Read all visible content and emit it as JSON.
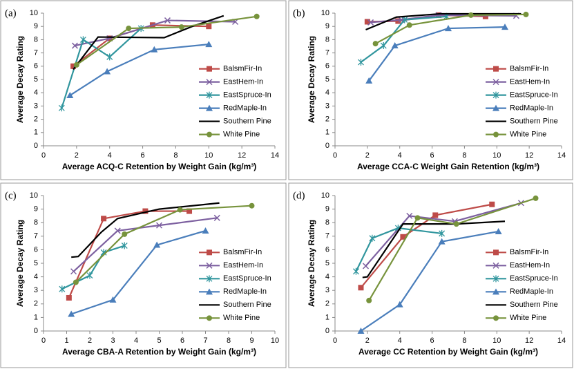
{
  "chart_data": [
    {
      "type": "line",
      "label": "(a)",
      "xlabel": "Average ACQ-C Retention by Weight Gain (kg/m³)",
      "ylabel": "Average Decay Rating",
      "xlim": [
        0,
        14
      ],
      "xticks": [
        0,
        2,
        4,
        6,
        8,
        10,
        12,
        14
      ],
      "ylim": [
        0,
        10
      ],
      "yticks": [
        0,
        1,
        2,
        3,
        4,
        5,
        6,
        7,
        8,
        9,
        10
      ],
      "legend": "right",
      "series": [
        {
          "name": "BalsmFir-In",
          "color": "#be4b48",
          "marker": "square",
          "x": [
            1.8,
            4.0,
            6.6,
            10.0
          ],
          "values": [
            6.0,
            8.1,
            9.1,
            9.0
          ]
        },
        {
          "name": "EastHem-In",
          "color": "#7d60a0",
          "marker": "x",
          "x": [
            1.9,
            4.0,
            7.5,
            11.6
          ],
          "values": [
            7.55,
            8.1,
            9.45,
            9.35
          ]
        },
        {
          "name": "EastSpruce-In",
          "color": "#31969e",
          "marker": "star",
          "x": [
            1.1,
            2.4,
            4.0,
            5.9
          ],
          "values": [
            2.85,
            8.0,
            6.7,
            8.85
          ]
        },
        {
          "name": "RedMaple-In",
          "color": "#4a7ebb",
          "marker": "triangle",
          "x": [
            1.6,
            3.85,
            6.7,
            10.0
          ],
          "values": [
            3.8,
            5.6,
            7.25,
            7.65
          ]
        },
        {
          "name": "Southern Pine",
          "color": "#000000",
          "marker": "none",
          "x": [
            1.8,
            3.3,
            7.3,
            9.0,
            10.9
          ],
          "values": [
            5.75,
            8.2,
            8.15,
            9.0,
            9.8
          ]
        },
        {
          "name": "White Pine",
          "color": "#77933c",
          "marker": "circle",
          "x": [
            2.0,
            5.15,
            8.35,
            12.9
          ],
          "values": [
            6.1,
            8.85,
            8.95,
            9.75
          ]
        }
      ]
    },
    {
      "type": "line",
      "label": "(b)",
      "xlabel": "Average CCA-C Weight Gain Retention (kg/m³)",
      "ylabel": "Average Decay Rating",
      "xlim": [
        0,
        14
      ],
      "xticks": [
        0,
        2,
        4,
        6,
        8,
        10,
        12,
        14
      ],
      "ylim": [
        0,
        10
      ],
      "yticks": [
        0,
        1,
        2,
        3,
        4,
        5,
        6,
        7,
        8,
        9,
        10
      ],
      "legend": "right",
      "series": [
        {
          "name": "BalsmFir-In",
          "color": "#be4b48",
          "marker": "square",
          "x": [
            2.0,
            3.9,
            6.4,
            9.3
          ],
          "values": [
            9.35,
            9.4,
            9.85,
            9.75
          ]
        },
        {
          "name": "EastHem-In",
          "color": "#7d60a0",
          "marker": "x",
          "x": [
            2.2,
            4.1,
            6.4,
            11.2
          ],
          "values": [
            9.3,
            9.5,
            9.85,
            9.8
          ]
        },
        {
          "name": "EastSpruce-In",
          "color": "#31969e",
          "marker": "star",
          "x": [
            1.6,
            3.0,
            4.3,
            6.9
          ],
          "values": [
            6.3,
            7.55,
            9.5,
            9.75
          ]
        },
        {
          "name": "RedMaple-In",
          "color": "#4a7ebb",
          "marker": "triangle",
          "x": [
            2.1,
            3.7,
            7.0,
            10.5
          ],
          "values": [
            4.9,
            7.55,
            8.85,
            8.95
          ]
        },
        {
          "name": "Southern Pine",
          "color": "#000000",
          "marker": "none",
          "x": [
            1.9,
            3.8,
            6.5,
            11.5
          ],
          "values": [
            8.75,
            9.7,
            9.95,
            9.95
          ]
        },
        {
          "name": "White Pine",
          "color": "#77933c",
          "marker": "circle",
          "x": [
            2.5,
            4.6,
            8.4,
            11.8
          ],
          "values": [
            7.7,
            9.1,
            9.85,
            9.9
          ]
        }
      ]
    },
    {
      "type": "line",
      "label": "(c)",
      "xlabel": "Average CBA-A Retention by Weight Gain (kg/m³)",
      "ylabel": "Average Decay Rating",
      "xlim": [
        0,
        10
      ],
      "xticks": [
        0,
        1,
        2,
        3,
        4,
        5,
        6,
        7,
        8,
        9,
        10
      ],
      "ylim": [
        0,
        10
      ],
      "yticks": [
        0,
        1,
        2,
        3,
        4,
        5,
        6,
        7,
        8,
        9,
        10
      ],
      "legend": "right",
      "series": [
        {
          "name": "BalsmFir-In",
          "color": "#be4b48",
          "marker": "square",
          "x": [
            1.1,
            2.6,
            4.4,
            6.3
          ],
          "values": [
            2.45,
            8.3,
            8.85,
            8.85
          ]
        },
        {
          "name": "EastHem-In",
          "color": "#7d60a0",
          "marker": "x",
          "x": [
            1.3,
            3.2,
            5.0,
            7.5
          ],
          "values": [
            4.4,
            7.4,
            7.8,
            8.35
          ]
        },
        {
          "name": "EastSpruce-In",
          "color": "#31969e",
          "marker": "star",
          "x": [
            0.8,
            2.0,
            2.6,
            3.5
          ],
          "values": [
            3.1,
            4.1,
            5.8,
            6.3
          ]
        },
        {
          "name": "RedMaple-In",
          "color": "#4a7ebb",
          "marker": "triangle",
          "x": [
            1.2,
            3.0,
            4.9,
            7.0
          ],
          "values": [
            1.25,
            2.3,
            6.35,
            7.4
          ]
        },
        {
          "name": "Southern Pine",
          "color": "#000000",
          "marker": "none",
          "x": [
            1.2,
            1.5,
            2.5,
            3.2,
            5.0,
            7.6
          ],
          "values": [
            5.45,
            5.5,
            7.3,
            8.3,
            9.0,
            9.45
          ]
        },
        {
          "name": "White Pine",
          "color": "#77933c",
          "marker": "circle",
          "x": [
            1.4,
            3.5,
            5.9,
            9.0
          ],
          "values": [
            3.6,
            7.15,
            8.95,
            9.25
          ]
        }
      ]
    },
    {
      "type": "line",
      "label": "(d)",
      "xlabel": "Average CC Retention by Weight Gain (kg/m³)",
      "ylabel": "Average Decay Rating",
      "xlim": [
        0,
        14
      ],
      "xticks": [
        0,
        2,
        4,
        6,
        8,
        10,
        12,
        14
      ],
      "ylim": [
        0,
        10
      ],
      "yticks": [
        0,
        1,
        2,
        3,
        4,
        5,
        6,
        7,
        8,
        9,
        10
      ],
      "legend": "right",
      "series": [
        {
          "name": "BalsmFir-In",
          "color": "#be4b48",
          "marker": "square",
          "x": [
            1.6,
            4.2,
            6.2,
            9.7
          ],
          "values": [
            3.2,
            6.95,
            8.55,
            9.35
          ]
        },
        {
          "name": "EastHem-In",
          "color": "#7d60a0",
          "marker": "x",
          "x": [
            1.9,
            4.6,
            7.4,
            11.5
          ],
          "values": [
            4.8,
            8.5,
            8.1,
            9.45
          ]
        },
        {
          "name": "EastSpruce-In",
          "color": "#31969e",
          "marker": "star",
          "x": [
            1.3,
            2.3,
            3.9,
            6.6
          ],
          "values": [
            4.4,
            6.85,
            7.6,
            7.2
          ]
        },
        {
          "name": "RedMaple-In",
          "color": "#4a7ebb",
          "marker": "triangle",
          "x": [
            1.6,
            4.0,
            6.6,
            10.1
          ],
          "values": [
            0,
            1.95,
            6.6,
            7.35
          ]
        },
        {
          "name": "Southern Pine",
          "color": "#000000",
          "marker": "none",
          "x": [
            1.7,
            2.0,
            4.2,
            7.5,
            10.5
          ],
          "values": [
            3.95,
            4.0,
            7.9,
            7.9,
            8.1
          ]
        },
        {
          "name": "White Pine",
          "color": "#77933c",
          "marker": "circle",
          "x": [
            2.1,
            5.1,
            7.5,
            12.4
          ],
          "values": [
            2.25,
            8.35,
            7.9,
            9.8
          ]
        }
      ]
    }
  ]
}
